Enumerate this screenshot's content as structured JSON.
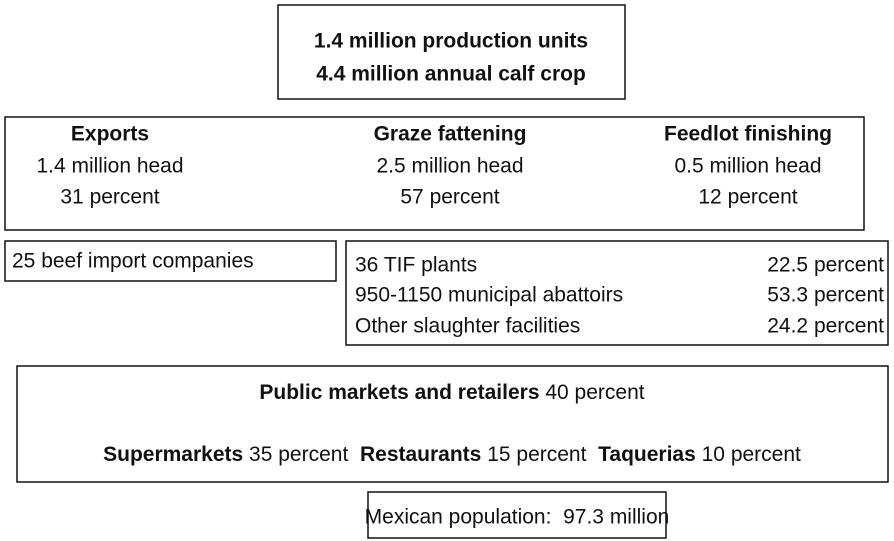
{
  "production": {
    "lines": [
      "1.4 million production units",
      "4.4 million annual calf crop"
    ]
  },
  "channels": [
    {
      "name": "Exports",
      "head": "1.4 million head",
      "share": "31 percent"
    },
    {
      "name": "Graze fattening",
      "head": "2.5 million head",
      "share": "57 percent"
    },
    {
      "name": "Feedlot finishing",
      "head": "0.5 million head",
      "share": "12 percent"
    }
  ],
  "imports": {
    "label": "25 beef import companies"
  },
  "slaughter": [
    {
      "name": "36 TIF plants",
      "share": "22.5 percent"
    },
    {
      "name": "950-1150 municipal abattoirs",
      "share": "53.3 percent"
    },
    {
      "name": "Other slaughter facilities",
      "share": "24.2 percent"
    }
  ],
  "retail": {
    "public": {
      "name": "Public markets and retailers",
      "share": "40 percent"
    },
    "others": [
      {
        "name": "Supermarkets",
        "share": "35 percent"
      },
      {
        "name": "Restaurants",
        "share": "15 percent"
      },
      {
        "name": "Taquerias",
        "share": "10 percent"
      }
    ]
  },
  "population": {
    "label": "Mexican population:  97.3 million"
  }
}
